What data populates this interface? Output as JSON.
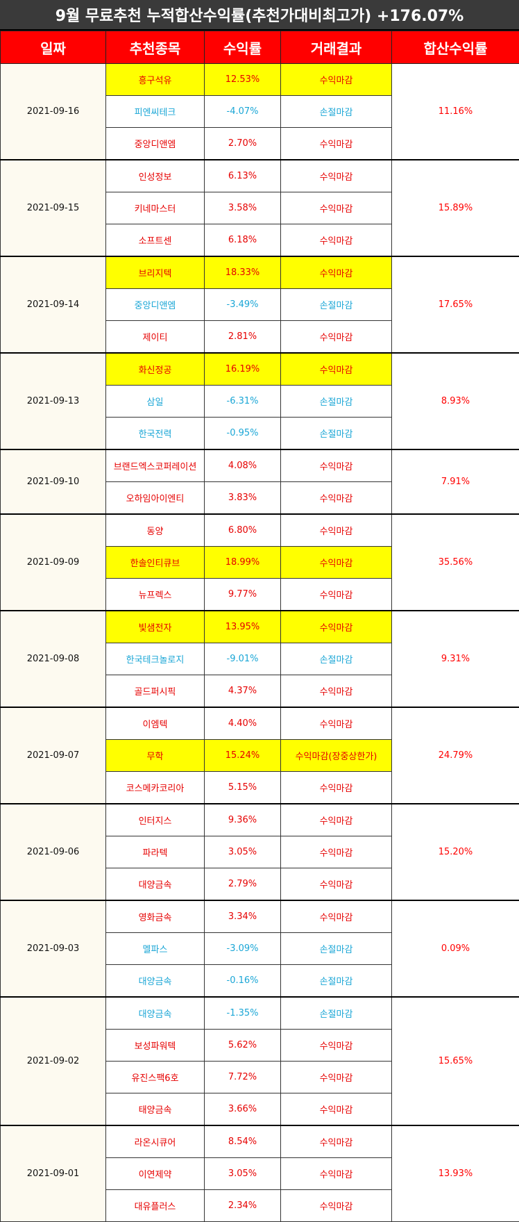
{
  "title": "9월 무료추천 누적합산수익률(추천가대비최고가) +176.07%",
  "headers": {
    "date": "일짜",
    "stock": "추천종목",
    "return": "수익률",
    "result": "거래결과",
    "sum": "합산수익률"
  },
  "colors": {
    "header_bg": "#ff0000",
    "title_bg": "#3a3a3a",
    "profit_text": "#e60000",
    "loss_text": "#1aa6d6",
    "highlight": "#ffff00",
    "date_bg": "#fdfaf0"
  },
  "groups": [
    {
      "date": "2021-09-16",
      "sum": "11.16%",
      "rows": [
        {
          "stock": "흥구석유",
          "return": "12.53%",
          "result": "수익마감",
          "type": "up",
          "highlight": true
        },
        {
          "stock": "피엔씨테크",
          "return": "-4.07%",
          "result": "손절마감",
          "type": "down",
          "highlight": false
        },
        {
          "stock": "중앙디앤엠",
          "return": "2.70%",
          "result": "수익마감",
          "type": "up",
          "highlight": false
        }
      ]
    },
    {
      "date": "2021-09-15",
      "sum": "15.89%",
      "rows": [
        {
          "stock": "인성정보",
          "return": "6.13%",
          "result": "수익마감",
          "type": "up",
          "highlight": false
        },
        {
          "stock": "키네마스터",
          "return": "3.58%",
          "result": "수익마감",
          "type": "up",
          "highlight": false
        },
        {
          "stock": "소프트센",
          "return": "6.18%",
          "result": "수익마감",
          "type": "up",
          "highlight": false
        }
      ]
    },
    {
      "date": "2021-09-14",
      "sum": "17.65%",
      "rows": [
        {
          "stock": "브리지텍",
          "return": "18.33%",
          "result": "수익마감",
          "type": "up",
          "highlight": true
        },
        {
          "stock": "중앙디앤엠",
          "return": "-3.49%",
          "result": "손절마감",
          "type": "down",
          "highlight": false
        },
        {
          "stock": "제이티",
          "return": "2.81%",
          "result": "수익마감",
          "type": "up",
          "highlight": false
        }
      ]
    },
    {
      "date": "2021-09-13",
      "sum": "8.93%",
      "rows": [
        {
          "stock": "화신정공",
          "return": "16.19%",
          "result": "수익마감",
          "type": "up",
          "highlight": true
        },
        {
          "stock": "삼일",
          "return": "-6.31%",
          "result": "손절마감",
          "type": "down",
          "highlight": false
        },
        {
          "stock": "한국전력",
          "return": "-0.95%",
          "result": "손절마감",
          "type": "down",
          "highlight": false
        }
      ]
    },
    {
      "date": "2021-09-10",
      "sum": "7.91%",
      "rows": [
        {
          "stock": "브랜드엑스코퍼레이션",
          "return": "4.08%",
          "result": "수익마감",
          "type": "up",
          "highlight": false
        },
        {
          "stock": "오하임아이엔티",
          "return": "3.83%",
          "result": "수익마감",
          "type": "up",
          "highlight": false
        }
      ]
    },
    {
      "date": "2021-09-09",
      "sum": "35.56%",
      "rows": [
        {
          "stock": "동양",
          "return": "6.80%",
          "result": "수익마감",
          "type": "up",
          "highlight": false
        },
        {
          "stock": "한솔인티큐브",
          "return": "18.99%",
          "result": "수익마감",
          "type": "up",
          "highlight": true
        },
        {
          "stock": "뉴프렉스",
          "return": "9.77%",
          "result": "수익마감",
          "type": "up",
          "highlight": false
        }
      ]
    },
    {
      "date": "2021-09-08",
      "sum": "9.31%",
      "rows": [
        {
          "stock": "빛샘전자",
          "return": "13.95%",
          "result": "수익마감",
          "type": "up",
          "highlight": true
        },
        {
          "stock": "한국테크놀로지",
          "return": "-9.01%",
          "result": "손절마감",
          "type": "down",
          "highlight": false
        },
        {
          "stock": "골드퍼시픽",
          "return": "4.37%",
          "result": "수익마감",
          "type": "up",
          "highlight": false
        }
      ]
    },
    {
      "date": "2021-09-07",
      "sum": "24.79%",
      "rows": [
        {
          "stock": "이엠텍",
          "return": "4.40%",
          "result": "수익마감",
          "type": "up",
          "highlight": false
        },
        {
          "stock": "무학",
          "return": "15.24%",
          "result": "수익마감(장중상한가)",
          "type": "up",
          "highlight": true
        },
        {
          "stock": "코스메카코리아",
          "return": "5.15%",
          "result": "수익마감",
          "type": "up",
          "highlight": false
        }
      ]
    },
    {
      "date": "2021-09-06",
      "sum": "15.20%",
      "rows": [
        {
          "stock": "인터지스",
          "return": "9.36%",
          "result": "수익마감",
          "type": "up",
          "highlight": false
        },
        {
          "stock": "파라텍",
          "return": "3.05%",
          "result": "수익마감",
          "type": "up",
          "highlight": false
        },
        {
          "stock": "대양금속",
          "return": "2.79%",
          "result": "수익마감",
          "type": "up",
          "highlight": false
        }
      ]
    },
    {
      "date": "2021-09-03",
      "sum": "0.09%",
      "rows": [
        {
          "stock": "영화금속",
          "return": "3.34%",
          "result": "수익마감",
          "type": "up",
          "highlight": false
        },
        {
          "stock": "멜파스",
          "return": "-3.09%",
          "result": "손절마감",
          "type": "down",
          "highlight": false
        },
        {
          "stock": "대양금속",
          "return": "-0.16%",
          "result": "손절마감",
          "type": "down",
          "highlight": false
        }
      ]
    },
    {
      "date": "2021-09-02",
      "sum": "15.65%",
      "rows": [
        {
          "stock": "대양금속",
          "return": "-1.35%",
          "result": "손절마감",
          "type": "down",
          "highlight": false
        },
        {
          "stock": "보성파워텍",
          "return": "5.62%",
          "result": "수익마감",
          "type": "up",
          "highlight": false
        },
        {
          "stock": "유진스팩6호",
          "return": "7.72%",
          "result": "수익마감",
          "type": "up",
          "highlight": false
        },
        {
          "stock": "태양금속",
          "return": "3.66%",
          "result": "수익마감",
          "type": "up",
          "highlight": false
        }
      ]
    },
    {
      "date": "2021-09-01",
      "sum": "13.93%",
      "rows": [
        {
          "stock": "라온시큐어",
          "return": "8.54%",
          "result": "수익마감",
          "type": "up",
          "highlight": false
        },
        {
          "stock": "이연제약",
          "return": "3.05%",
          "result": "수익마감",
          "type": "up",
          "highlight": false
        },
        {
          "stock": "대유플러스",
          "return": "2.34%",
          "result": "수익마감",
          "type": "up",
          "highlight": false
        }
      ]
    }
  ]
}
